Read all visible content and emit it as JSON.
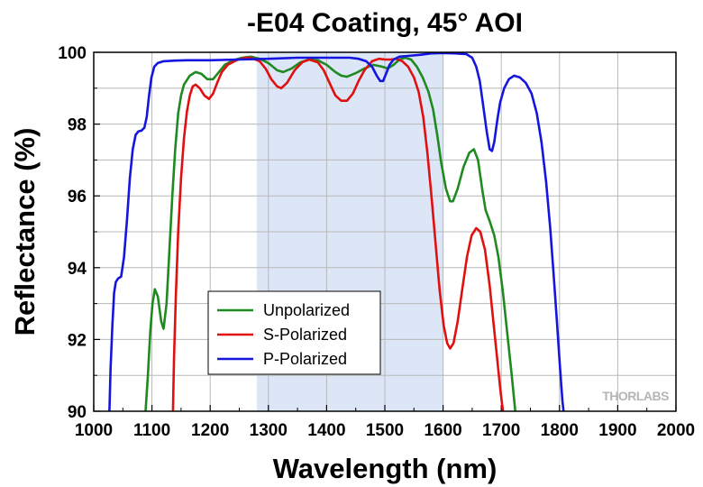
{
  "chart_data": {
    "type": "line",
    "title": "-E04 Coating, 45° AOI",
    "xlabel": "Wavelength (nm)",
    "ylabel": "Reflectance (%)",
    "xlim": [
      1000,
      2000
    ],
    "ylim": [
      90,
      100
    ],
    "xticks": [
      1000,
      1100,
      1200,
      1300,
      1400,
      1500,
      1600,
      1700,
      1800,
      1900,
      2000
    ],
    "yticks": [
      90,
      92,
      94,
      96,
      98,
      100
    ],
    "grid": true,
    "legend_position": "lower-left",
    "highlight_band": {
      "x_start": 1280,
      "x_end": 1600,
      "color": "#dce6f7"
    },
    "watermark": "THORLABS",
    "series": [
      {
        "name": "Unpolarized",
        "color": "#1f8a1f",
        "points": [
          [
            1089,
            90.0
          ],
          [
            1093,
            91.0
          ],
          [
            1097,
            92.2
          ],
          [
            1101,
            93.0
          ],
          [
            1105,
            93.4
          ],
          [
            1110,
            93.2
          ],
          [
            1116,
            92.5
          ],
          [
            1120,
            92.3
          ],
          [
            1125,
            93.0
          ],
          [
            1130,
            94.5
          ],
          [
            1135,
            96.0
          ],
          [
            1140,
            97.3
          ],
          [
            1145,
            98.3
          ],
          [
            1150,
            98.8
          ],
          [
            1155,
            99.1
          ],
          [
            1165,
            99.35
          ],
          [
            1175,
            99.45
          ],
          [
            1185,
            99.4
          ],
          [
            1195,
            99.25
          ],
          [
            1205,
            99.25
          ],
          [
            1215,
            99.45
          ],
          [
            1225,
            99.65
          ],
          [
            1240,
            99.78
          ],
          [
            1255,
            99.85
          ],
          [
            1270,
            99.88
          ],
          [
            1285,
            99.82
          ],
          [
            1300,
            99.7
          ],
          [
            1315,
            99.5
          ],
          [
            1325,
            99.45
          ],
          [
            1340,
            99.55
          ],
          [
            1355,
            99.72
          ],
          [
            1370,
            99.8
          ],
          [
            1385,
            99.78
          ],
          [
            1400,
            99.65
          ],
          [
            1415,
            99.45
          ],
          [
            1425,
            99.35
          ],
          [
            1435,
            99.32
          ],
          [
            1450,
            99.42
          ],
          [
            1465,
            99.55
          ],
          [
            1480,
            99.65
          ],
          [
            1495,
            99.6
          ],
          [
            1505,
            99.55
          ],
          [
            1515,
            99.65
          ],
          [
            1525,
            99.8
          ],
          [
            1535,
            99.85
          ],
          [
            1545,
            99.8
          ],
          [
            1555,
            99.6
          ],
          [
            1565,
            99.3
          ],
          [
            1575,
            98.9
          ],
          [
            1583,
            98.4
          ],
          [
            1590,
            97.7
          ],
          [
            1597,
            96.9
          ],
          [
            1605,
            96.2
          ],
          [
            1612,
            95.85
          ],
          [
            1617,
            95.85
          ],
          [
            1625,
            96.2
          ],
          [
            1635,
            96.8
          ],
          [
            1645,
            97.2
          ],
          [
            1653,
            97.3
          ],
          [
            1660,
            97.0
          ],
          [
            1667,
            96.2
          ],
          [
            1673,
            95.6
          ],
          [
            1680,
            95.3
          ],
          [
            1688,
            94.9
          ],
          [
            1695,
            94.3
          ],
          [
            1703,
            93.3
          ],
          [
            1710,
            92.2
          ],
          [
            1718,
            91.0
          ],
          [
            1724,
            90.0
          ]
        ]
      },
      {
        "name": "S-Polarized",
        "color": "#e01010",
        "points": [
          [
            1136,
            90.0
          ],
          [
            1138,
            91.5
          ],
          [
            1141,
            93.2
          ],
          [
            1145,
            95.0
          ],
          [
            1150,
            96.5
          ],
          [
            1155,
            97.6
          ],
          [
            1160,
            98.35
          ],
          [
            1165,
            98.8
          ],
          [
            1170,
            99.05
          ],
          [
            1175,
            99.1
          ],
          [
            1182,
            99.0
          ],
          [
            1190,
            98.8
          ],
          [
            1198,
            98.7
          ],
          [
            1205,
            98.85
          ],
          [
            1212,
            99.15
          ],
          [
            1220,
            99.45
          ],
          [
            1230,
            99.65
          ],
          [
            1245,
            99.78
          ],
          [
            1260,
            99.85
          ],
          [
            1270,
            99.85
          ],
          [
            1285,
            99.75
          ],
          [
            1295,
            99.55
          ],
          [
            1305,
            99.25
          ],
          [
            1315,
            99.05
          ],
          [
            1322,
            99.0
          ],
          [
            1332,
            99.15
          ],
          [
            1345,
            99.5
          ],
          [
            1358,
            99.72
          ],
          [
            1370,
            99.8
          ],
          [
            1385,
            99.72
          ],
          [
            1395,
            99.5
          ],
          [
            1405,
            99.15
          ],
          [
            1415,
            98.8
          ],
          [
            1425,
            98.65
          ],
          [
            1435,
            98.65
          ],
          [
            1445,
            98.85
          ],
          [
            1455,
            99.2
          ],
          [
            1465,
            99.5
          ],
          [
            1478,
            99.75
          ],
          [
            1490,
            99.82
          ],
          [
            1500,
            99.8
          ],
          [
            1510,
            99.8
          ],
          [
            1520,
            99.82
          ],
          [
            1530,
            99.75
          ],
          [
            1540,
            99.6
          ],
          [
            1550,
            99.3
          ],
          [
            1558,
            98.9
          ],
          [
            1566,
            98.2
          ],
          [
            1573,
            97.2
          ],
          [
            1580,
            96.0
          ],
          [
            1587,
            94.7
          ],
          [
            1594,
            93.4
          ],
          [
            1601,
            92.4
          ],
          [
            1607,
            91.9
          ],
          [
            1612,
            91.75
          ],
          [
            1618,
            91.9
          ],
          [
            1625,
            92.5
          ],
          [
            1633,
            93.4
          ],
          [
            1641,
            94.3
          ],
          [
            1649,
            94.9
          ],
          [
            1657,
            95.1
          ],
          [
            1664,
            95.0
          ],
          [
            1672,
            94.5
          ],
          [
            1680,
            93.5
          ],
          [
            1687,
            92.4
          ],
          [
            1694,
            91.3
          ],
          [
            1699,
            90.5
          ],
          [
            1703,
            90.0
          ]
        ]
      },
      {
        "name": "P-Polarized",
        "color": "#1515e0",
        "points": [
          [
            1027,
            90.0
          ],
          [
            1029,
            91.2
          ],
          [
            1032,
            92.4
          ],
          [
            1035,
            93.3
          ],
          [
            1038,
            93.6
          ],
          [
            1042,
            93.7
          ],
          [
            1047,
            93.75
          ],
          [
            1052,
            94.3
          ],
          [
            1057,
            95.3
          ],
          [
            1062,
            96.5
          ],
          [
            1067,
            97.3
          ],
          [
            1072,
            97.7
          ],
          [
            1077,
            97.8
          ],
          [
            1082,
            97.82
          ],
          [
            1087,
            97.9
          ],
          [
            1091,
            98.2
          ],
          [
            1095,
            98.8
          ],
          [
            1099,
            99.3
          ],
          [
            1104,
            99.6
          ],
          [
            1110,
            99.7
          ],
          [
            1120,
            99.75
          ],
          [
            1140,
            99.77
          ],
          [
            1160,
            99.78
          ],
          [
            1200,
            99.78
          ],
          [
            1250,
            99.8
          ],
          [
            1300,
            99.82
          ],
          [
            1350,
            99.85
          ],
          [
            1400,
            99.85
          ],
          [
            1420,
            99.85
          ],
          [
            1440,
            99.85
          ],
          [
            1455,
            99.82
          ],
          [
            1468,
            99.75
          ],
          [
            1478,
            99.6
          ],
          [
            1486,
            99.35
          ],
          [
            1492,
            99.2
          ],
          [
            1497,
            99.2
          ],
          [
            1502,
            99.4
          ],
          [
            1508,
            99.65
          ],
          [
            1515,
            99.8
          ],
          [
            1525,
            99.88
          ],
          [
            1540,
            99.9
          ],
          [
            1560,
            99.93
          ],
          [
            1580,
            99.97
          ],
          [
            1600,
            99.98
          ],
          [
            1620,
            99.97
          ],
          [
            1640,
            99.95
          ],
          [
            1650,
            99.85
          ],
          [
            1657,
            99.6
          ],
          [
            1663,
            99.2
          ],
          [
            1669,
            98.5
          ],
          [
            1675,
            97.8
          ],
          [
            1680,
            97.3
          ],
          [
            1684,
            97.25
          ],
          [
            1688,
            97.5
          ],
          [
            1693,
            98.1
          ],
          [
            1698,
            98.6
          ],
          [
            1705,
            99.0
          ],
          [
            1713,
            99.25
          ],
          [
            1722,
            99.35
          ],
          [
            1732,
            99.3
          ],
          [
            1742,
            99.15
          ],
          [
            1752,
            98.85
          ],
          [
            1761,
            98.3
          ],
          [
            1769,
            97.5
          ],
          [
            1777,
            96.4
          ],
          [
            1784,
            95.1
          ],
          [
            1790,
            93.8
          ],
          [
            1796,
            92.4
          ],
          [
            1801,
            91.2
          ],
          [
            1805,
            90.3
          ],
          [
            1807,
            90.0
          ]
        ]
      }
    ]
  }
}
